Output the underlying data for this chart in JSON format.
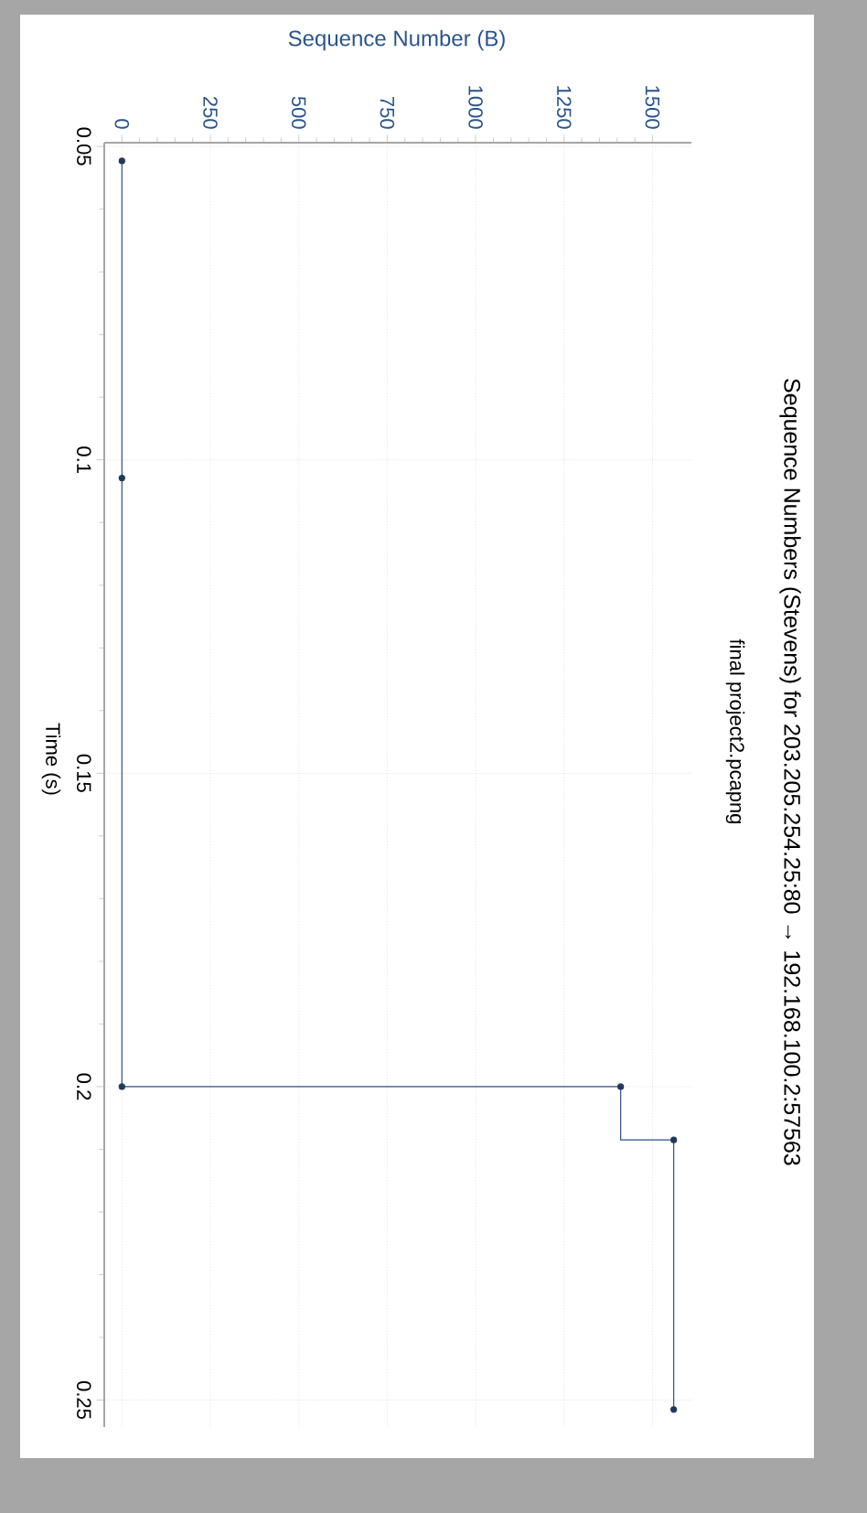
{
  "chart_data": {
    "type": "step",
    "title": "Sequence Numbers (Stevens) for 203.205.254.25:80 → 192.168.100.2:57563",
    "subtitle": "final project2.pcapng",
    "xlabel": "Sequence Number (B)",
    "ylabel": "Time (s)",
    "x": [
      0,
      0,
      0,
      1410,
      1560,
      1560
    ],
    "values": [
      0.0523,
      0.1029,
      0.2,
      0.2,
      0.2085,
      0.2515
    ],
    "color": "#2f5286",
    "marker": "circle",
    "xlim": [
      -50,
      1610
    ],
    "ylim": [
      0.2543,
      0.0494
    ],
    "xticks": [
      0,
      250,
      500,
      750,
      1000,
      1250,
      1500
    ],
    "yticks": [
      0.05,
      0.1,
      0.15,
      0.2,
      0.25
    ],
    "grid": true
  }
}
